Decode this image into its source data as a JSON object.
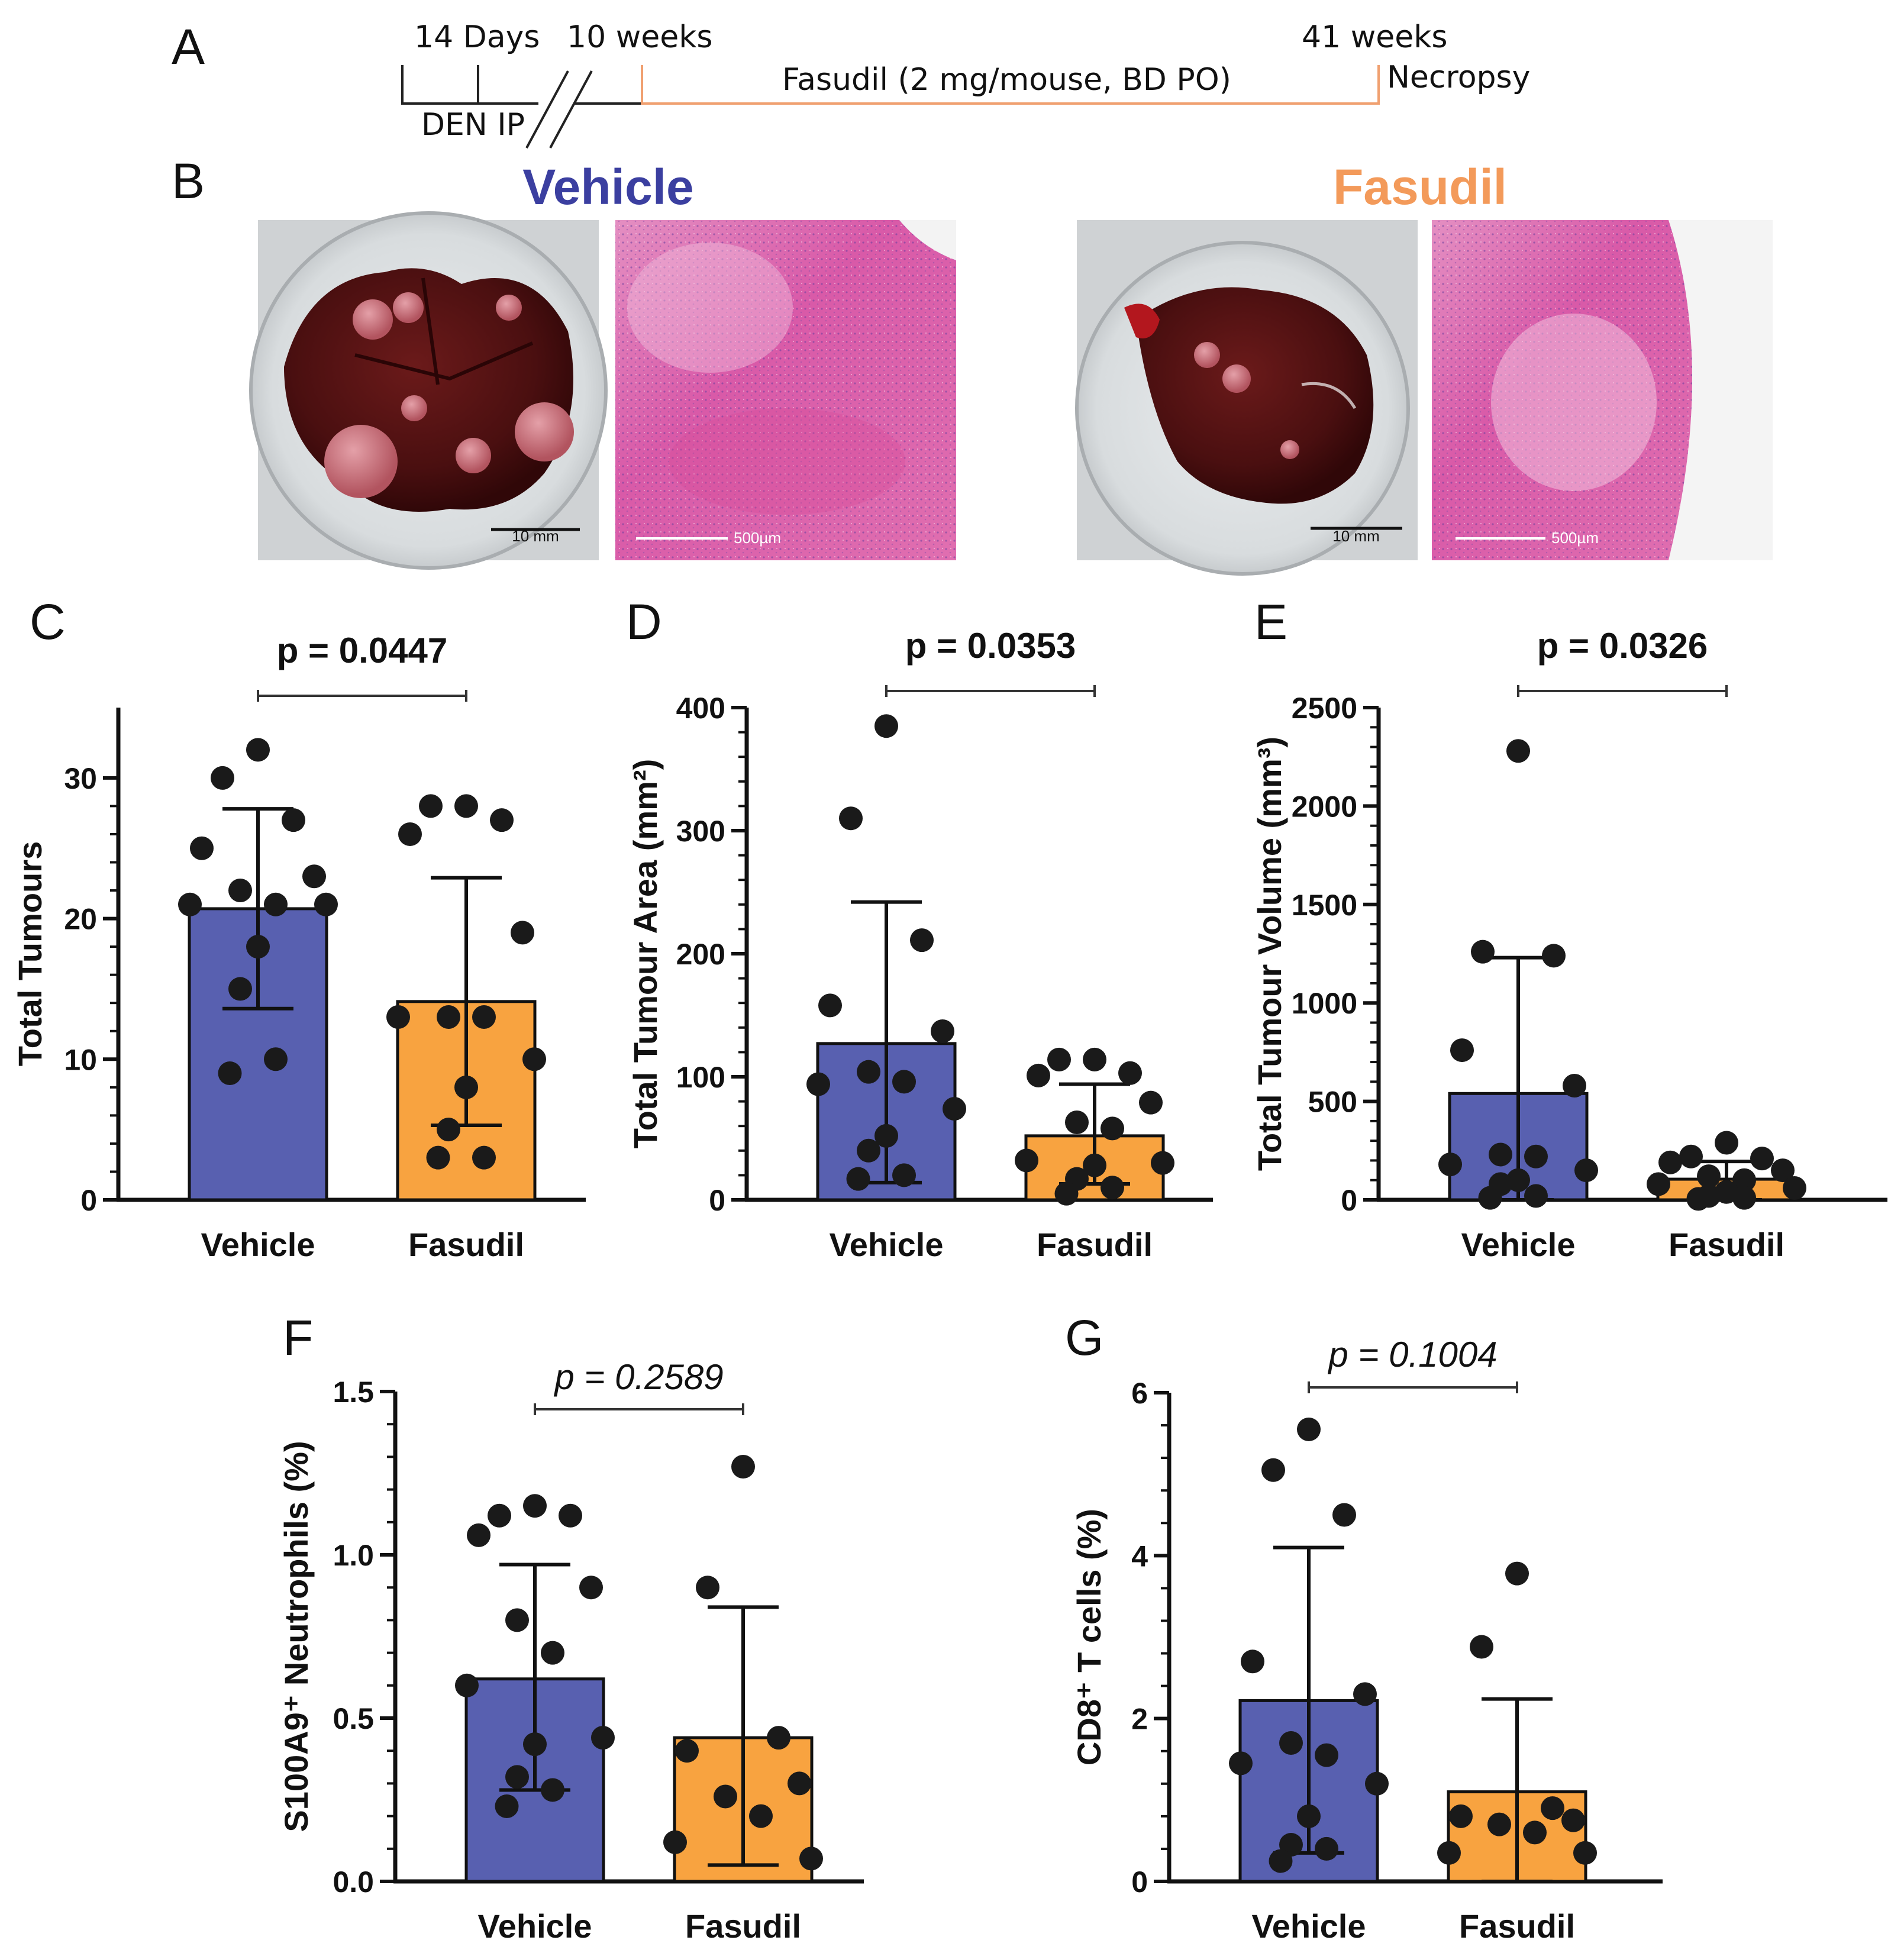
{
  "panel_letters": {
    "a": "A",
    "b": "B",
    "c": "C",
    "d": "D",
    "e": "E",
    "f": "F",
    "g": "G"
  },
  "timeline": {
    "days_label": "14 Days",
    "week10_label": "10 weeks",
    "week41_label": "41 weeks",
    "den_label": "DEN IP",
    "treatment_label": "Fasudil (2 mg/mouse, BD PO)",
    "end_label": "Necropsy",
    "treatment_color": "#f0a070"
  },
  "photos": {
    "vehicle_title": "Vehicle",
    "fasudil_title": "Fasudil",
    "vehicle_color": "#3b3fa0",
    "fasudil_color": "#f39a5a",
    "liver_scale": "10 mm",
    "histo_scale": "500µm",
    "liver_scale_fasudil": "10 mm",
    "histo_scale_fasudil": "500µm"
  },
  "colors": {
    "vehicle_bar": "#5860b0",
    "fasudil_bar": "#f8a340",
    "dot": "#1a1a1a"
  },
  "chart_data": [
    {
      "id": "C",
      "type": "bar",
      "title": "",
      "ylabel": "Total Tumours",
      "categories": [
        "Vehicle",
        "Fasudil"
      ],
      "ylim": [
        0,
        35
      ],
      "yticks": [
        0,
        10,
        20,
        30
      ],
      "series": [
        {
          "name": "Vehicle",
          "mean": 20.7,
          "sd_low": 13.6,
          "sd_high": 27.8,
          "points": [
            32,
            30,
            27,
            25,
            23,
            22,
            21,
            21,
            21,
            18,
            15,
            10,
            9
          ]
        },
        {
          "name": "Fasudil",
          "mean": 14.1,
          "sd_low": 5.3,
          "sd_high": 22.9,
          "points": [
            28,
            28,
            27,
            26,
            19,
            13,
            13,
            13,
            10,
            8,
            5,
            3,
            3
          ]
        }
      ],
      "pvalue": "p = 0.0447",
      "pstyle": "bold"
    },
    {
      "id": "D",
      "type": "bar",
      "title": "",
      "ylabel": "Total Tumour Area (mm²)",
      "categories": [
        "Vehicle",
        "Fasudil"
      ],
      "ylim": [
        0,
        400
      ],
      "yticks": [
        0,
        100,
        200,
        300,
        400
      ],
      "series": [
        {
          "name": "Vehicle",
          "mean": 127,
          "sd_low": 14,
          "sd_high": 242,
          "points": [
            385,
            310,
            211,
            158,
            137,
            104,
            96,
            94,
            74,
            52,
            40,
            20,
            17
          ]
        },
        {
          "name": "Fasudil",
          "mean": 52,
          "sd_low": 13,
          "sd_high": 94,
          "points": [
            114,
            114,
            103,
            101,
            79,
            63,
            58,
            32,
            30,
            28,
            17,
            10,
            5
          ]
        }
      ],
      "pvalue": "p = 0.0353",
      "pstyle": "bold"
    },
    {
      "id": "E",
      "type": "bar",
      "title": "",
      "ylabel": "Total Tumour Volume (mm³)",
      "categories": [
        "Vehicle",
        "Fasudil"
      ],
      "ylim": [
        0,
        2500
      ],
      "yticks": [
        0,
        500,
        1000,
        1500,
        2000,
        2500
      ],
      "series": [
        {
          "name": "Vehicle",
          "mean": 540,
          "sd_low": 0,
          "sd_high": 1230,
          "points": [
            2280,
            1260,
            1240,
            760,
            580,
            230,
            220,
            180,
            150,
            100,
            80,
            20,
            10
          ]
        },
        {
          "name": "Fasudil",
          "mean": 105,
          "sd_low": 0,
          "sd_high": 195,
          "points": [
            290,
            220,
            210,
            190,
            150,
            120,
            100,
            80,
            60,
            40,
            20,
            10,
            5
          ]
        }
      ],
      "pvalue": "p = 0.0326",
      "pstyle": "bold"
    },
    {
      "id": "F",
      "type": "bar",
      "title": "",
      "ylabel": "S100A9⁺ Neutrophils (%)",
      "categories": [
        "Vehicle",
        "Fasudil"
      ],
      "ylim": [
        0,
        1.5
      ],
      "yticks": [
        0.0,
        0.5,
        1.0,
        1.5
      ],
      "series": [
        {
          "name": "Vehicle",
          "mean": 0.62,
          "sd_low": 0.28,
          "sd_high": 0.97,
          "points": [
            1.15,
            1.12,
            1.12,
            1.06,
            0.9,
            0.8,
            0.7,
            0.6,
            0.44,
            0.42,
            0.32,
            0.28,
            0.23
          ]
        },
        {
          "name": "Fasudil",
          "mean": 0.44,
          "sd_low": 0.05,
          "sd_high": 0.84,
          "points": [
            1.27,
            0.9,
            0.44,
            0.4,
            0.3,
            0.26,
            0.2,
            0.12,
            0.07
          ]
        }
      ],
      "pvalue": "p = 0.2589",
      "pstyle": "italic"
    },
    {
      "id": "G",
      "type": "bar",
      "title": "",
      "ylabel": "CD8⁺ T cells (%)",
      "categories": [
        "Vehicle",
        "Fasudil"
      ],
      "ylim": [
        0,
        6
      ],
      "yticks": [
        0,
        2,
        4,
        6
      ],
      "series": [
        {
          "name": "Vehicle",
          "mean": 2.22,
          "sd_low": 0.35,
          "sd_high": 4.1,
          "points": [
            5.55,
            5.05,
            4.5,
            2.7,
            2.3,
            1.7,
            1.55,
            1.45,
            1.2,
            0.8,
            0.45,
            0.4,
            0.25
          ]
        },
        {
          "name": "Fasudil",
          "mean": 1.1,
          "sd_low": 0,
          "sd_high": 2.24,
          "points": [
            3.78,
            2.88,
            0.9,
            0.8,
            0.75,
            0.7,
            0.6,
            0.35,
            0.35
          ]
        }
      ],
      "pvalue": "p = 0.1004",
      "pstyle": "italic"
    }
  ]
}
